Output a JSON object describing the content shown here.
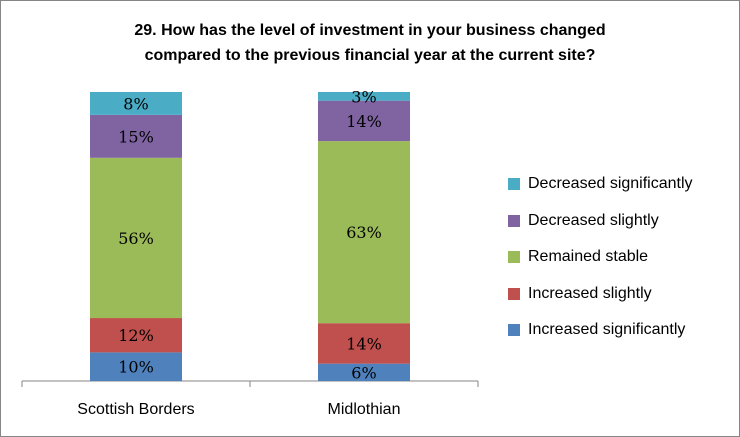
{
  "chart_data": {
    "type": "bar",
    "stacked": true,
    "percent_stacked": true,
    "title": "29.  How has the level of investment in your business changed compared to the previous financial year at the current site?",
    "title_lines": [
      "29.  How has the level of investment in your business changed",
      "compared to the previous financial year at the current site?"
    ],
    "categories": [
      "Scottish Borders",
      "Midlothian"
    ],
    "series": [
      {
        "name": "Increased significantly",
        "color": "#4f81bd",
        "values": [
          10,
          6
        ],
        "labels": [
          "10%",
          "6%"
        ]
      },
      {
        "name": "Increased slightly",
        "color": "#c0504d",
        "values": [
          12,
          14
        ],
        "labels": [
          "12%",
          "14%"
        ]
      },
      {
        "name": "Remained stable",
        "color": "#9bbb59",
        "values": [
          56,
          63
        ],
        "labels": [
          "56%",
          "63%"
        ]
      },
      {
        "name": "Decreased slightly",
        "color": "#8064a2",
        "values": [
          15,
          14
        ],
        "labels": [
          "15%",
          "14%"
        ]
      },
      {
        "name": "Decreased significantly",
        "color": "#4bacc6",
        "values": [
          8,
          3
        ],
        "labels": [
          "8%",
          "3%"
        ]
      }
    ],
    "legend_position": "right",
    "grid": false,
    "y_axis_visible": false
  }
}
